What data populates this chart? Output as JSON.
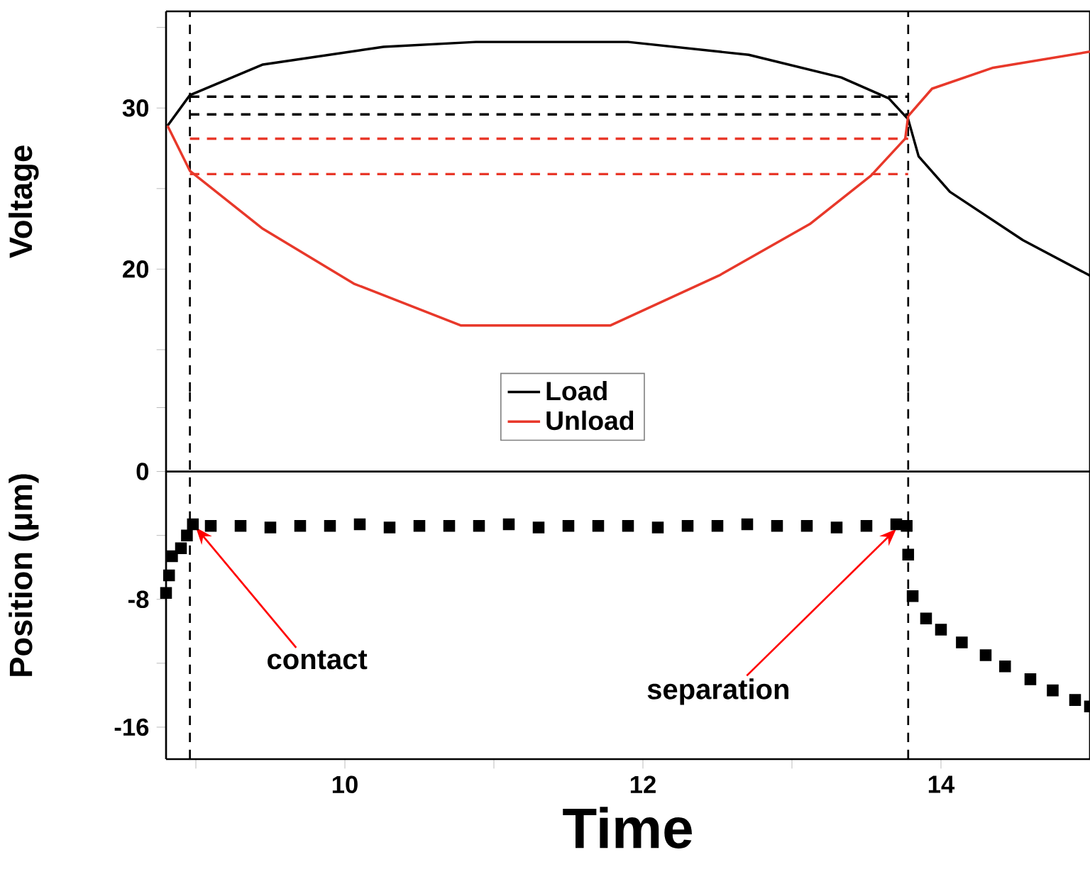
{
  "chart_data": [
    {
      "type": "line",
      "ylabel": "Voltage",
      "xlim": [
        8.8,
        15.0
      ],
      "ylim": [
        12.4,
        36
      ],
      "yticks": [
        {
          "value": 15,
          "label": null
        },
        20,
        {
          "value": 25,
          "label": null
        },
        30,
        {
          "value": 35,
          "label": null
        }
      ],
      "tick_labels": "y",
      "legend": "bottom",
      "series": [
        {
          "name": "Load",
          "color": "#000000",
          "x": [
            8.81,
            8.96,
            9.45,
            10.26,
            10.88,
            11.9,
            12.71,
            13.33,
            13.65,
            13.78,
            13.85,
            14.06,
            14.55,
            15.0
          ],
          "values": [
            28.9,
            30.8,
            32.7,
            33.8,
            34.1,
            34.1,
            33.3,
            31.9,
            30.6,
            29.3,
            27.0,
            24.8,
            21.8,
            19.6
          ]
        },
        {
          "name": "Unload",
          "color": "#e8382a",
          "x": [
            8.81,
            8.96,
            9.45,
            10.06,
            10.78,
            11.78,
            12.51,
            13.12,
            13.53,
            13.76,
            13.78,
            13.94,
            14.35,
            15.0
          ],
          "values": [
            28.9,
            26.1,
            22.5,
            19.1,
            16.5,
            16.5,
            19.6,
            22.8,
            25.8,
            28.1,
            29.5,
            31.2,
            32.5,
            33.5
          ]
        },
        {
          "color": "#000000",
          "line_style": "dashed",
          "x": [
            8.96,
            13.78
          ],
          "values": [
            30.7,
            30.7
          ]
        },
        {
          "color": "#000000",
          "line_style": "dashed",
          "x": [
            8.96,
            13.78
          ],
          "values": [
            29.6,
            29.6
          ]
        },
        {
          "color": "#e8382a",
          "line_style": "dashed",
          "x": [
            8.96,
            13.78
          ],
          "values": [
            28.1,
            28.1
          ]
        },
        {
          "color": "#e8382a",
          "line_style": "dashed",
          "x": [
            8.96,
            13.78
          ],
          "values": [
            25.9,
            25.9
          ]
        }
      ],
      "ref_lines": [
        {
          "axis": "x",
          "value": 8.96,
          "color": "#000000",
          "line_style": "dashed"
        },
        {
          "axis": "x",
          "value": 13.78,
          "color": "#000000",
          "line_style": "dashed"
        }
      ]
    },
    {
      "type": "scatter",
      "ylabel": "Position (μm)",
      "xlabel": "Time",
      "xlim": [
        8.8,
        15.0
      ],
      "ylim": [
        -18,
        5
      ],
      "marker": "square",
      "xticks": [
        {
          "value": 9,
          "label": null
        },
        10,
        {
          "value": 11,
          "label": null
        },
        12,
        {
          "value": 13,
          "label": null
        },
        14
      ],
      "yticks": [
        {
          "value": 4,
          "label": null
        },
        0,
        {
          "value": -4,
          "label": null
        },
        -8,
        {
          "value": -12,
          "label": null
        },
        -16
      ],
      "series": [
        {
          "color": "#000000",
          "x": [
            8.8,
            8.82,
            8.84,
            8.9,
            8.94,
            8.98,
            9.1,
            9.3,
            9.5,
            9.7,
            9.9,
            10.1,
            10.3,
            10.5,
            10.7,
            10.9,
            11.1,
            11.3,
            11.5,
            11.7,
            11.9,
            12.1,
            12.3,
            12.5,
            12.7,
            12.9,
            13.1,
            13.3,
            13.5,
            13.7,
            13.77,
            13.78,
            13.81,
            13.9,
            14.0,
            14.14,
            14.3,
            14.43,
            14.6,
            14.75,
            14.9,
            15.0
          ],
          "values": [
            -7.6,
            -6.5,
            -5.3,
            -4.8,
            -4.0,
            -3.3,
            -3.4,
            -3.4,
            -3.5,
            -3.4,
            -3.4,
            -3.3,
            -3.5,
            -3.4,
            -3.4,
            -3.4,
            -3.3,
            -3.5,
            -3.4,
            -3.4,
            -3.4,
            -3.5,
            -3.4,
            -3.4,
            -3.3,
            -3.4,
            -3.4,
            -3.5,
            -3.4,
            -3.3,
            -3.4,
            -5.2,
            -7.8,
            -9.2,
            -9.9,
            -10.7,
            -11.5,
            -12.2,
            -13.0,
            -13.7,
            -14.3,
            -14.7
          ]
        }
      ],
      "ref_lines": [
        {
          "axis": "y",
          "value": 0,
          "color": "#000000",
          "line_style": "solid"
        },
        {
          "axis": "x",
          "value": 8.96,
          "color": "#000000",
          "line_style": "dashed"
        },
        {
          "axis": "x",
          "value": 13.78,
          "color": "#000000",
          "line_style": "dashed"
        }
      ],
      "annotations": [
        {
          "text": "contact",
          "x": 9.0,
          "y": -3.5
        },
        {
          "text": "separation",
          "x": 13.7,
          "y": -3.6
        }
      ]
    }
  ]
}
